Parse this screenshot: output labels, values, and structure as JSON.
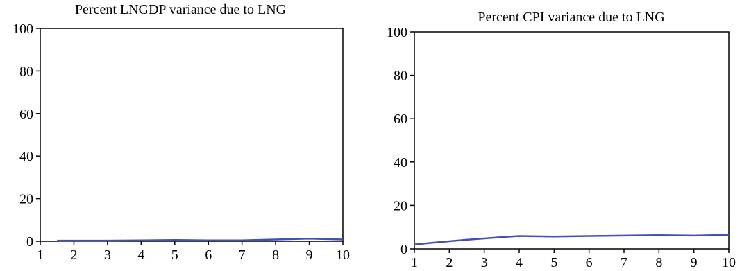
{
  "chart_data": [
    {
      "type": "line",
      "title": "Percent LNGDP variance due to LNG",
      "xlabel": "",
      "ylabel": "",
      "xlim": [
        1,
        10
      ],
      "ylim": [
        0,
        100
      ],
      "xticks": [
        1,
        2,
        3,
        4,
        5,
        6,
        7,
        8,
        9,
        10
      ],
      "yticks": [
        0,
        20,
        40,
        60,
        80,
        100
      ],
      "grid": false,
      "series": [
        {
          "x": [
            1.5,
            2,
            3,
            4,
            5,
            6,
            7,
            8,
            9,
            10
          ],
          "values": [
            0.3,
            0.3,
            0.3,
            0.4,
            0.6,
            0.4,
            0.4,
            0.8,
            1.2,
            0.8
          ],
          "color": "#3f51b5"
        }
      ]
    },
    {
      "type": "line",
      "title": "Percent CPI variance due to LNG",
      "xlabel": "",
      "ylabel": "",
      "xlim": [
        1,
        10
      ],
      "ylim": [
        0,
        100
      ],
      "xticks": [
        1,
        2,
        3,
        4,
        5,
        6,
        7,
        8,
        9,
        10
      ],
      "yticks": [
        0,
        20,
        40,
        60,
        80,
        100
      ],
      "grid": false,
      "series": [
        {
          "x": [
            1,
            1.5,
            2,
            2.5,
            3,
            3.5,
            4,
            5,
            6,
            7,
            8,
            9,
            10
          ],
          "values": [
            2,
            2.8,
            3.5,
            4.2,
            4.8,
            5.4,
            5.9,
            5.7,
            5.9,
            6.1,
            6.3,
            6.1,
            6.5
          ],
          "color": "#3f51b5"
        }
      ]
    }
  ]
}
